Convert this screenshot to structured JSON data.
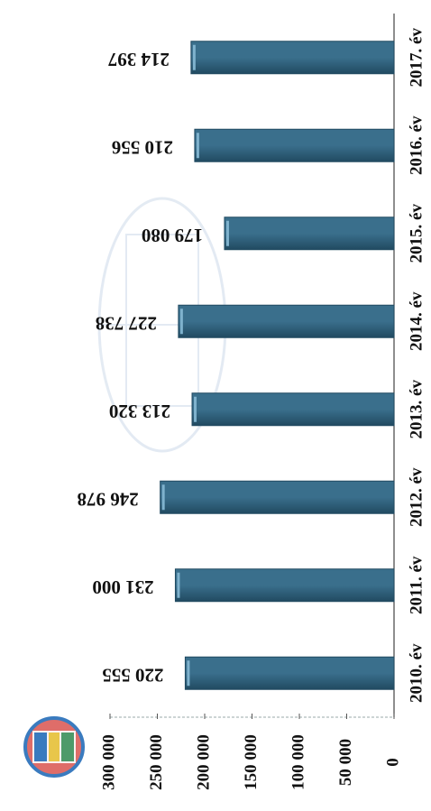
{
  "chart_data": {
    "type": "bar",
    "orientation": "rotated 90 degrees clockwise",
    "categories": [
      "2010. év",
      "2011. év",
      "2012. év",
      "2013. év",
      "2014. év",
      "2015. év",
      "2016. év",
      "2017. év"
    ],
    "values": [
      220555,
      231000,
      246978,
      213320,
      227738,
      179080,
      210556,
      214397
    ],
    "data_labels": [
      "220 555",
      "231 000",
      "246 978",
      "213 320",
      "227 738",
      "179 080",
      "210 556",
      "214 397"
    ],
    "yticks": [
      "0",
      "50 000",
      "100 000",
      "150 000",
      "200 000",
      "250 000",
      "300 000"
    ],
    "ylim": [
      0,
      300000
    ],
    "grid": false,
    "legend": "none",
    "bar_color": "#3a6f8c",
    "bar_edge_color": "#214a61",
    "bar_highlight_color": "#7fb2cd"
  },
  "logo": {
    "name": "coat-of-arms-icon",
    "colors": [
      "#d9534f",
      "#3a7bbf",
      "#4e9a6a",
      "#e8c64a"
    ]
  }
}
